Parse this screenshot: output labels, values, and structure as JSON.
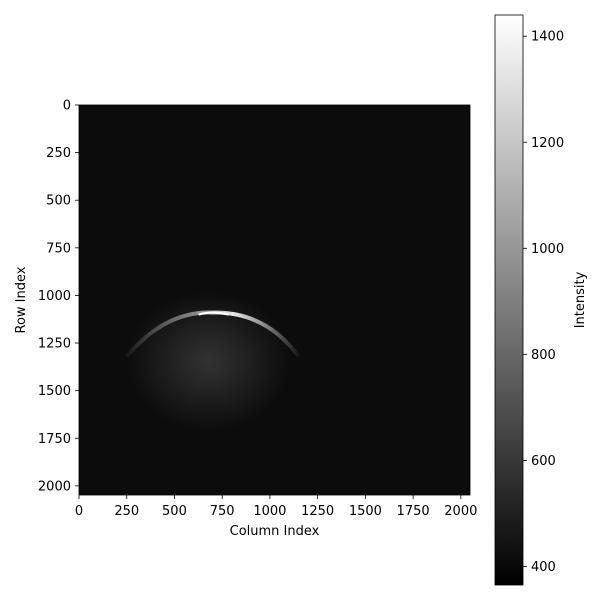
{
  "chart_data": {
    "type": "heatmap",
    "title": "",
    "xlabel": "Column Index",
    "ylabel": "Row Index",
    "xlim": [
      0,
      2048
    ],
    "ylim": [
      2048,
      0
    ],
    "x_ticks": [
      0,
      250,
      500,
      750,
      1000,
      1250,
      1500,
      1750,
      2000
    ],
    "y_ticks": [
      0,
      250,
      500,
      750,
      1000,
      1250,
      1500,
      1750,
      2000
    ],
    "colormap": "gray",
    "background_intensity": 415,
    "features": [
      {
        "name": "arc",
        "type": "bright dome-shaped arc",
        "center_column": 700,
        "top_row": 1090,
        "column_range": [
          250,
          1150
        ],
        "row_range": [
          1090,
          1320
        ],
        "peak_intensity": 1440
      }
    ],
    "colorbar": {
      "label": "Intensity",
      "range": [
        365,
        1440
      ],
      "ticks": [
        400,
        600,
        800,
        1000,
        1200,
        1400
      ]
    },
    "grid": false,
    "legend": "none"
  }
}
